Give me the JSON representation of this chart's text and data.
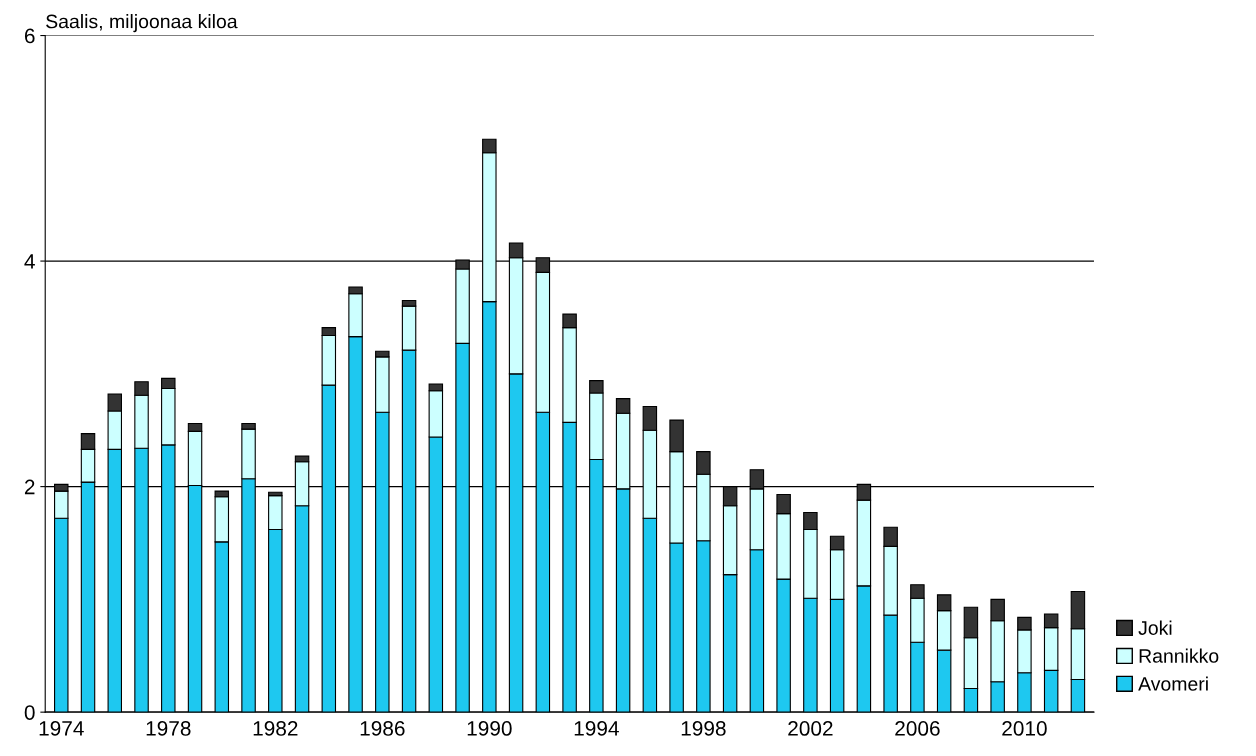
{
  "chart_data": {
    "type": "bar",
    "stacked": true,
    "ylabel": "Saalis, miljoonaa kiloa",
    "categories": [
      "1974",
      null,
      null,
      null,
      "1978",
      null,
      null,
      null,
      "1982",
      null,
      null,
      null,
      "1986",
      null,
      null,
      null,
      "1990",
      null,
      null,
      null,
      "1994",
      null,
      null,
      null,
      "1998",
      null,
      null,
      null,
      "2002",
      null,
      null,
      null,
      "2006",
      null,
      null,
      null,
      "2010",
      null,
      null
    ],
    "series": [
      {
        "name": "Avomeri",
        "color": "#1ec8f0",
        "values": [
          1.72,
          2.04,
          2.33,
          2.34,
          2.37,
          2.01,
          1.51,
          2.07,
          1.62,
          1.83,
          2.9,
          3.33,
          2.66,
          3.21,
          2.44,
          3.27,
          3.64,
          3.0,
          2.66,
          2.57,
          2.24,
          1.98,
          1.72,
          1.5,
          1.52,
          1.22,
          1.44,
          1.18,
          1.01,
          1.0,
          1.12,
          0.86,
          0.62,
          0.55,
          0.21,
          0.27,
          0.35,
          0.37,
          0.29
        ]
      },
      {
        "name": "Rannikko",
        "color": "#ccffff",
        "values": [
          0.24,
          0.29,
          0.34,
          0.47,
          0.5,
          0.48,
          0.4,
          0.44,
          0.3,
          0.39,
          0.44,
          0.38,
          0.49,
          0.39,
          0.41,
          0.66,
          1.32,
          1.03,
          1.24,
          0.84,
          0.59,
          0.67,
          0.78,
          0.81,
          0.59,
          0.61,
          0.54,
          0.58,
          0.61,
          0.44,
          0.76,
          0.61,
          0.39,
          0.35,
          0.45,
          0.54,
          0.38,
          0.38,
          0.45
        ]
      },
      {
        "name": "Joki",
        "color": "#333333",
        "values": [
          0.06,
          0.14,
          0.15,
          0.12,
          0.09,
          0.07,
          0.05,
          0.05,
          0.03,
          0.05,
          0.07,
          0.06,
          0.05,
          0.05,
          0.06,
          0.08,
          0.12,
          0.13,
          0.13,
          0.12,
          0.11,
          0.13,
          0.21,
          0.28,
          0.2,
          0.17,
          0.17,
          0.17,
          0.15,
          0.12,
          0.14,
          0.17,
          0.12,
          0.14,
          0.27,
          0.19,
          0.11,
          0.12,
          0.33
        ]
      }
    ],
    "ylim": [
      0,
      6
    ],
    "yticks": [
      0,
      2,
      4,
      6
    ],
    "grid": "y",
    "legend": "right"
  }
}
